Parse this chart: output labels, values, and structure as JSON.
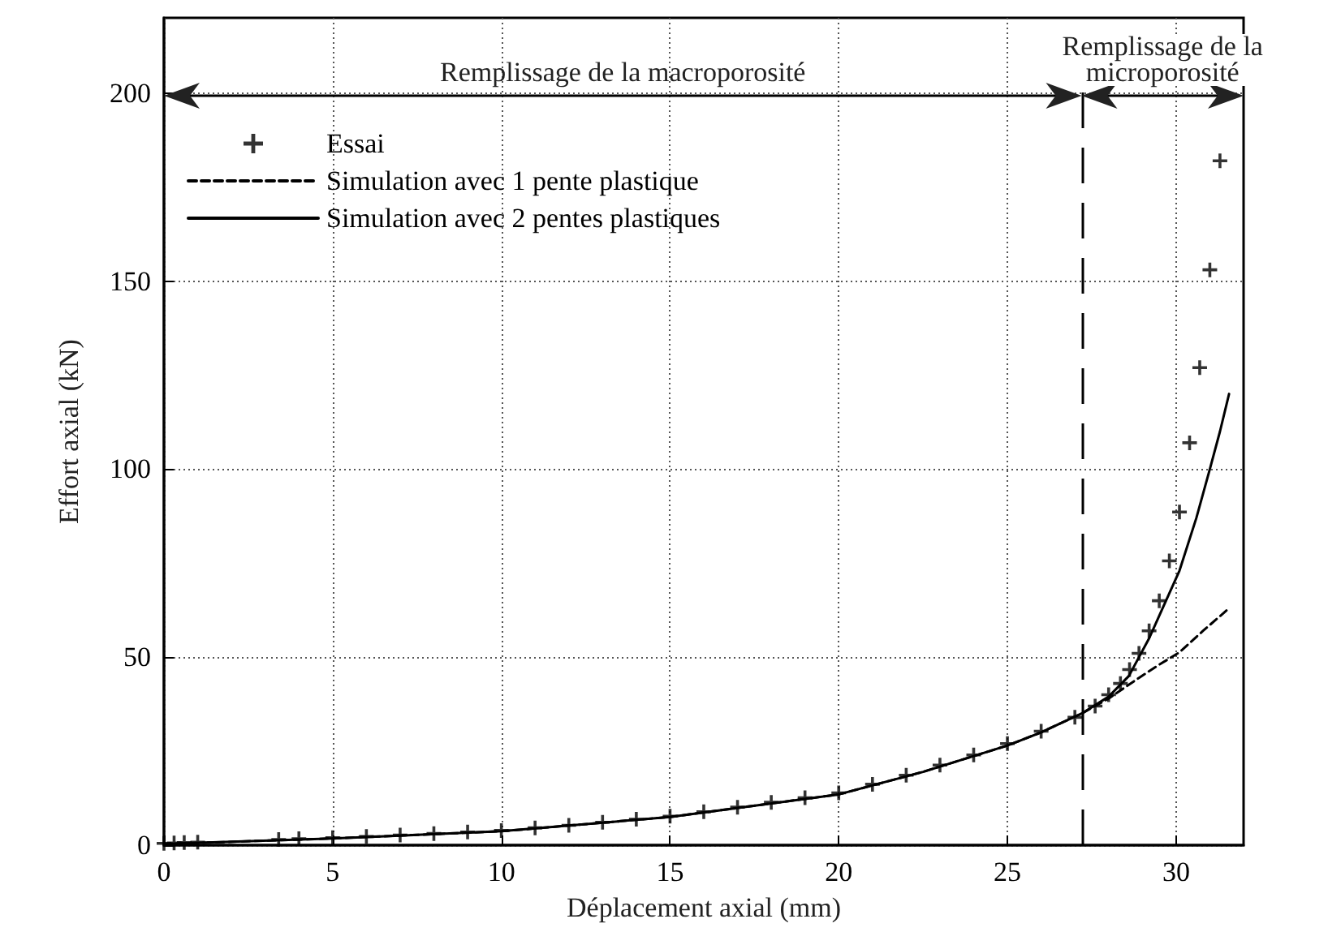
{
  "chart_data": {
    "type": "line",
    "xlabel": "Déplacement axial (mm)",
    "ylabel": "Effort axial (kN)",
    "xlim": [
      0,
      32
    ],
    "xticks": [
      0,
      5,
      10,
      15,
      20,
      25,
      30
    ],
    "ylim": [
      0,
      220
    ],
    "yticks": [
      0,
      50,
      100,
      150,
      200
    ],
    "grid": true,
    "legend": "top left",
    "series": [
      {
        "name": "Essai",
        "type": "scatter",
        "marker": "cross",
        "color": "#000000",
        "x": [
          0,
          0.3,
          0.6,
          1,
          3.4,
          4,
          5,
          6,
          7,
          8,
          9,
          10,
          11,
          12,
          13,
          14,
          15,
          16,
          17,
          18,
          19,
          20,
          21,
          22,
          23,
          24,
          25,
          26,
          27,
          27.6,
          28,
          28.35,
          28.62,
          28.9,
          29.2,
          29.5,
          29.8,
          30.1,
          30.4,
          30.7,
          31,
          31.3
        ],
        "values": [
          0.5,
          0.6,
          0.7,
          0.8,
          1.5,
          1.7,
          2,
          2.3,
          2.7,
          3.1,
          3.5,
          3.9,
          4.6,
          5.3,
          6.1,
          6.9,
          7.7,
          8.9,
          10.1,
          11.4,
          12.6,
          13.9,
          16.2,
          18.6,
          21.3,
          24,
          27,
          30.3,
          34,
          37,
          40,
          43,
          46.7,
          51,
          57,
          65,
          75.6,
          88.6,
          107,
          127,
          153,
          182
        ]
      },
      {
        "name": "Simulation avec 1 pente plastique",
        "line_style": "dashed",
        "color": "#000000",
        "x": [
          0,
          5,
          10,
          15,
          20,
          22.5,
          25,
          26,
          27.2,
          28,
          28.9,
          29.5,
          30.1,
          30.8,
          31.57
        ],
        "values": [
          0.3,
          1.8,
          3.7,
          7.5,
          13.5,
          19.5,
          26.5,
          30,
          35,
          39,
          44.5,
          48,
          51.3,
          57,
          63
        ]
      },
      {
        "name": "Simulation avec 2 pentes plastiques",
        "line_style": "solid",
        "color": "#000000",
        "x": [
          0,
          5,
          10,
          15,
          20,
          22.5,
          25,
          26,
          27.2,
          28,
          28.6,
          29.2,
          29.6,
          30.1,
          30.6,
          31,
          31.3,
          31.57
        ],
        "values": [
          0.3,
          1.8,
          3.7,
          7.5,
          13.5,
          19.5,
          26.5,
          30,
          35,
          39.5,
          45,
          55,
          63,
          73,
          87,
          100,
          110,
          120
        ]
      }
    ],
    "ref_lines": [
      {
        "axis": "x",
        "value": 27.2,
        "line_style": "dashed",
        "color": "#000000"
      }
    ],
    "annotations": [
      "Remplissage de la macroporosité",
      "Remplissage de la\nmicroporosité"
    ]
  }
}
